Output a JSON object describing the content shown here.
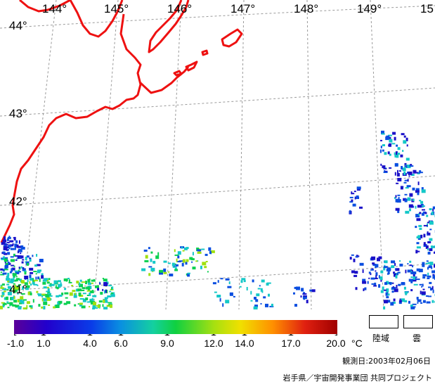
{
  "map": {
    "longitude_labels": [
      "144°",
      "145°",
      "146°",
      "147°",
      "148°",
      "149°",
      "15"
    ],
    "latitude_labels": [
      "44°",
      "43°",
      "42°",
      "41°"
    ],
    "coastline_color": "#ee1111",
    "grid_color": "#9a9a9a"
  },
  "legend": {
    "ticks": [
      "-1.0",
      "1.0",
      "4.0",
      "6.0",
      "9.0",
      "12.0",
      "14.0",
      "17.0",
      "20.0"
    ],
    "unit": "°C",
    "land_label": "陸域",
    "cloud_label": "雲",
    "colors": [
      "#5a0099",
      "#1a10c8",
      "#0a4ee0",
      "#14c8c8",
      "#0ad050",
      "#a0e010",
      "#f0e000",
      "#ff7a00",
      "#e01010",
      "#a00000"
    ]
  },
  "observation_date": "観測日:2003年02月06日",
  "credit": "岩手県／宇宙開発事業団 共同プロジェクト"
}
